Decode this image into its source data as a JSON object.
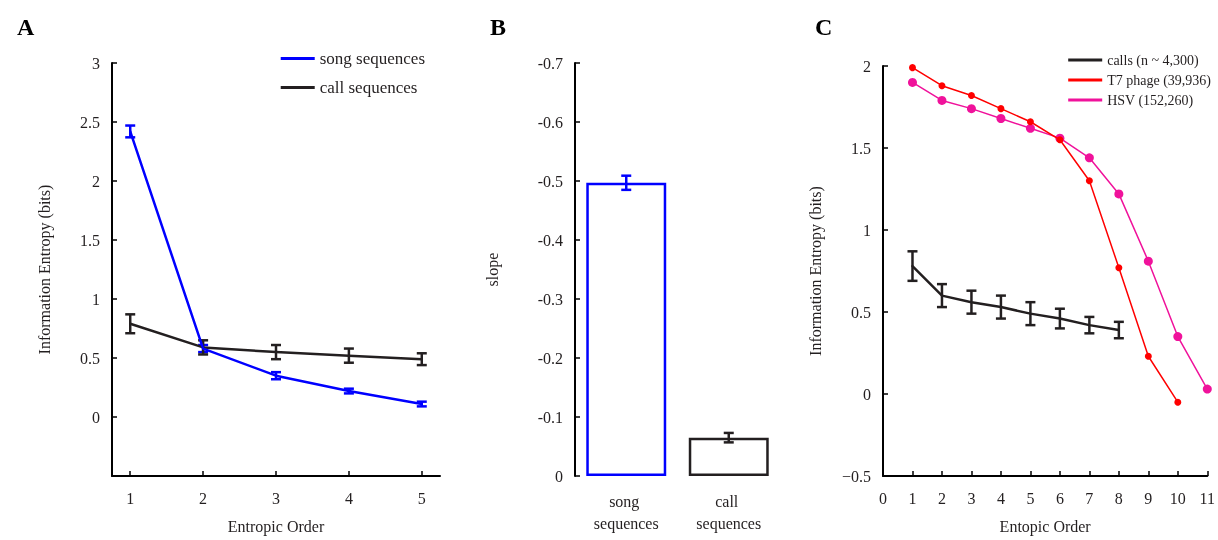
{
  "chart_data": [
    {
      "type": "line",
      "title": "A",
      "xlabel": "Entropic Order",
      "ylabel": "Information Entropy (bits)",
      "x": [
        1,
        2,
        3,
        4,
        5
      ],
      "xlim": [
        0.75,
        5.25
      ],
      "xticks": [
        1,
        2,
        3,
        4,
        5
      ],
      "ylim": [
        -0.5,
        3
      ],
      "yticks": [
        0,
        0.5,
        1,
        1.5,
        2,
        2.5,
        3
      ],
      "legend": "top right",
      "marker": "none",
      "series": [
        {
          "name": "song sequences",
          "color": "#0000ff",
          "values": [
            2.42,
            0.58,
            0.35,
            0.22,
            0.11
          ],
          "errors": [
            0.05,
            0.03,
            0.03,
            0.02,
            0.02
          ]
        },
        {
          "name": "call sequences",
          "color": "#231f20",
          "values": [
            0.79,
            0.59,
            0.55,
            0.52,
            0.49
          ],
          "errors": [
            0.08,
            0.06,
            0.06,
            0.06,
            0.05
          ]
        }
      ]
    },
    {
      "type": "bar",
      "title": "B",
      "ylabel": "slope",
      "categories": [
        "song sequences",
        "call sequences"
      ],
      "ylim": [
        0,
        -0.7
      ],
      "yticks": [
        0,
        -0.1,
        -0.2,
        -0.3,
        -0.4,
        -0.5,
        -0.6,
        -0.7
      ],
      "values": [
        -0.497,
        -0.065
      ],
      "colors": [
        "#0000ff",
        "#231f20"
      ],
      "errors": [
        0.012,
        0.008
      ]
    },
    {
      "type": "line",
      "title": "C",
      "xlabel": "Entopic Order",
      "ylabel": "Information Entropy (bits)",
      "xlim": [
        0,
        11
      ],
      "xticks": [
        0,
        1,
        2,
        3,
        4,
        5,
        6,
        7,
        8,
        9,
        10,
        11
      ],
      "ylim": [
        -0.5,
        2
      ],
      "yticks": [
        {
          "value": -0.5,
          "label": "−0.5"
        },
        0,
        0.5,
        1,
        1.5,
        2
      ],
      "legend": "top right",
      "series": [
        {
          "name": "calls (n ~ 4,300)",
          "color": "#231f20",
          "marker": "none",
          "x": [
            1,
            2,
            3,
            4,
            5,
            6,
            7,
            8
          ],
          "values": [
            0.78,
            0.6,
            0.56,
            0.53,
            0.49,
            0.46,
            0.42,
            0.39
          ],
          "errors": [
            0.09,
            0.07,
            0.07,
            0.07,
            0.07,
            0.06,
            0.05,
            0.05
          ]
        },
        {
          "name": "T7 phage (39,936)",
          "color": "#ff0000",
          "marker": "circle",
          "x": [
            1,
            2,
            3,
            4,
            5,
            6,
            7,
            8,
            9,
            10
          ],
          "values": [
            1.99,
            1.88,
            1.82,
            1.74,
            1.66,
            1.55,
            1.3,
            0.77,
            0.23,
            -0.05
          ]
        },
        {
          "name": "HSV (152,260)",
          "color": "#f0129b",
          "marker": "circle",
          "x": [
            1,
            2,
            3,
            4,
            5,
            6,
            7,
            8,
            9,
            10,
            11
          ],
          "values": [
            1.9,
            1.79,
            1.74,
            1.68,
            1.62,
            1.56,
            1.44,
            1.22,
            0.81,
            0.35,
            0.03
          ]
        }
      ]
    }
  ]
}
